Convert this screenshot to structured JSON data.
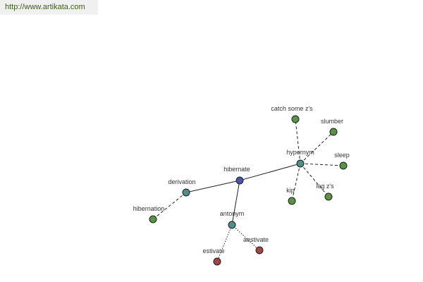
{
  "header": {
    "url": "http://www.artikata.com"
  },
  "colors": {
    "center": "#4a55b0",
    "relation": "#4e8f8b",
    "term": "#5a9345",
    "antonym_term": "#a14545"
  },
  "graph": {
    "nodes": [
      {
        "id": "hibernate",
        "label": "hibernate",
        "kind": "center"
      },
      {
        "id": "derivation",
        "label": "derivation",
        "kind": "relation"
      },
      {
        "id": "hypernym",
        "label": "hypernym",
        "kind": "relation"
      },
      {
        "id": "antonym",
        "label": "antonym",
        "kind": "relation"
      },
      {
        "id": "hibernation",
        "label": "hibernation",
        "kind": "term"
      },
      {
        "id": "catch-some-zs",
        "label": "catch some z's",
        "kind": "term"
      },
      {
        "id": "slumber",
        "label": "slumber",
        "kind": "term"
      },
      {
        "id": "sleep",
        "label": "sleep",
        "kind": "term"
      },
      {
        "id": "log-zs",
        "label": "log z's",
        "kind": "term"
      },
      {
        "id": "kip",
        "label": "kip",
        "kind": "term"
      },
      {
        "id": "estivate",
        "label": "estivate",
        "kind": "antonym_term"
      },
      {
        "id": "aestivate",
        "label": "aestivate",
        "kind": "antonym_term"
      }
    ],
    "edges": [
      {
        "from": "hibernate",
        "to": "derivation",
        "style": "solid"
      },
      {
        "from": "hibernate",
        "to": "hypernym",
        "style": "solid"
      },
      {
        "from": "hibernate",
        "to": "antonym",
        "style": "solid"
      },
      {
        "from": "derivation",
        "to": "hibernation",
        "style": "dashed"
      },
      {
        "from": "hypernym",
        "to": "catch-some-zs",
        "style": "dashed"
      },
      {
        "from": "hypernym",
        "to": "slumber",
        "style": "dashed"
      },
      {
        "from": "hypernym",
        "to": "sleep",
        "style": "dashed"
      },
      {
        "from": "hypernym",
        "to": "log-zs",
        "style": "dashed"
      },
      {
        "from": "hypernym",
        "to": "kip",
        "style": "dashed"
      },
      {
        "from": "antonym",
        "to": "estivate",
        "style": "dotted"
      },
      {
        "from": "antonym",
        "to": "aestivate",
        "style": "dotted"
      }
    ]
  }
}
